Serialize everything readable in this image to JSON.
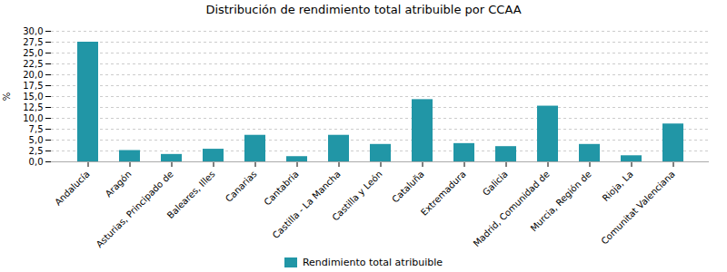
{
  "chart_data": {
    "type": "bar",
    "title": "Distribución de rendimiento total atribuible por CCAA",
    "ylabel": "%",
    "categories": [
      "Andalucía",
      "Aragón",
      "Asturias, Principado de",
      "Baleares, Illes",
      "Canarias",
      "Cantabria",
      "Castilla - La Mancha",
      "Castilla y León",
      "Cataluña",
      "Extremadura",
      "Galicia",
      "Madrid, Comunidad de",
      "Murcia, Región de",
      "Rioja, La",
      "Comunitat Valenciana"
    ],
    "series": [
      {
        "name": "Rendimiento total atribuible",
        "color": "#2196a6",
        "values": [
          27.5,
          2.6,
          1.7,
          2.9,
          6.1,
          1.2,
          6.1,
          4.0,
          14.3,
          4.2,
          3.5,
          12.8,
          4.0,
          1.4,
          8.7
        ]
      }
    ],
    "ylim": [
      0,
      30
    ],
    "yticks": [
      {
        "value": 0.0,
        "label": "0,0"
      },
      {
        "value": 2.5,
        "label": "2,5"
      },
      {
        "value": 5.0,
        "label": "5,0"
      },
      {
        "value": 7.5,
        "label": "7,5"
      },
      {
        "value": 10.0,
        "label": "10,0"
      },
      {
        "value": 12.5,
        "label": "12,5"
      },
      {
        "value": 15.0,
        "label": "15,0"
      },
      {
        "value": 17.5,
        "label": "17,5"
      },
      {
        "value": 20.0,
        "label": "20,0"
      },
      {
        "value": 22.5,
        "label": "22,5"
      },
      {
        "value": 25.0,
        "label": "25,0"
      },
      {
        "value": 27.5,
        "label": "27,5"
      },
      {
        "value": 30.0,
        "label": "30,0"
      }
    ],
    "grid": true,
    "legend": "bottom"
  }
}
